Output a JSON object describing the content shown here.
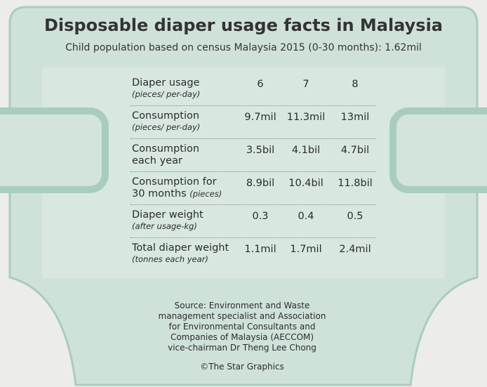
{
  "title": "Disposable diaper usage facts in Malaysia",
  "subtitle": "Child population based on census Malaysia 2015 (0-30 months): 1.62mil",
  "table": {
    "rows": [
      {
        "label": [
          "Diaper usage"
        ],
        "note": "(pieces/ per-day)",
        "cells": [
          "6",
          "7",
          "8"
        ]
      },
      {
        "label": [
          "Consumption"
        ],
        "note": "(pieces/ per-day)",
        "cells": [
          "9.7mil",
          "11.3mil",
          "13mil"
        ]
      },
      {
        "label": [
          "Consumption",
          "each year"
        ],
        "cells": [
          "3.5bil",
          "4.1bil",
          "4.7bil"
        ]
      },
      {
        "label": [
          "Consumption for",
          "30 months"
        ],
        "note": "(pieces)",
        "cells": [
          "8.9bil",
          "10.4bil",
          "11.8bil"
        ]
      },
      {
        "label": [
          "Diaper weight"
        ],
        "note": "(after usage-kg)",
        "cells": [
          "0.3",
          "0.4",
          "0.5"
        ]
      },
      {
        "label": [
          "Total diaper weight"
        ],
        "note": "(tonnes each year)",
        "cells": [
          "1.1mil",
          "1.7mil",
          "2.4mil"
        ]
      }
    ]
  },
  "source": [
    "Source: Environment and Waste",
    "management specialist and Association",
    "for Environmental Consultants and",
    "Companies of Malaysia (AECCOM)",
    "vice-chairman Dr Theng Lee Chong"
  ],
  "credit": "©The Star Graphics"
}
